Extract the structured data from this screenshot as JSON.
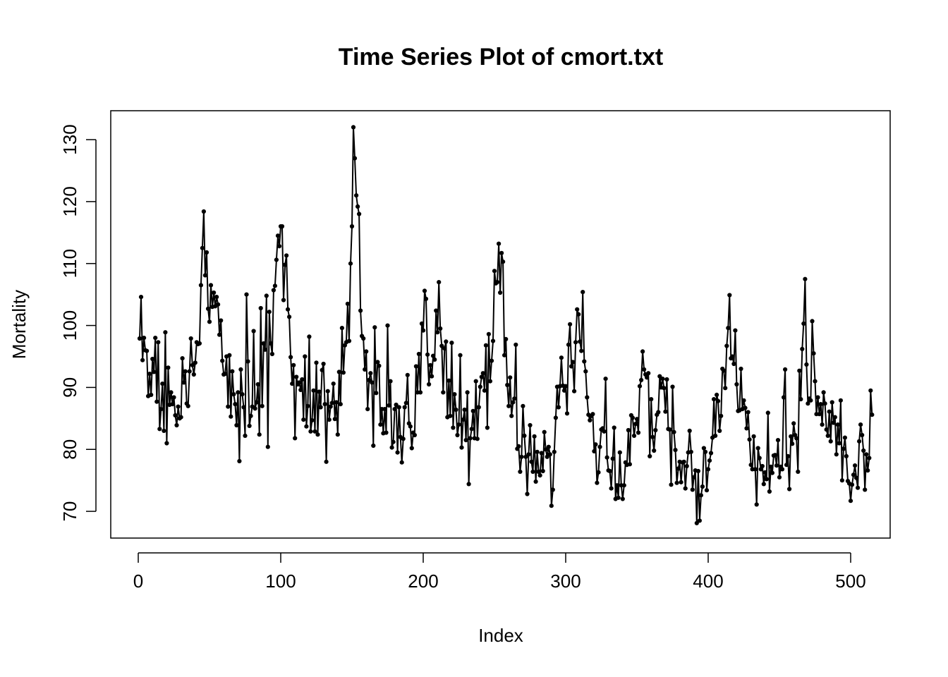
{
  "chart_data": {
    "type": "line",
    "title": "Time Series Plot of cmort.txt",
    "xlabel": "Index",
    "ylabel": "Mortality",
    "xlim": [
      1,
      508
    ],
    "ylim": [
      68,
      132
    ],
    "x_ticks": [
      0,
      100,
      200,
      300,
      400,
      500
    ],
    "y_ticks": [
      70,
      80,
      90,
      100,
      110,
      120,
      130
    ],
    "grid": false,
    "markers": "point",
    "line_color": "#000000",
    "series": [
      {
        "values": [
          97.9,
          104.6,
          94.4,
          98.0,
          96.0,
          95.9,
          88.6,
          92.2,
          88.8,
          94.6,
          92.5,
          98.0,
          87.7,
          97.3,
          83.3,
          86.5,
          90.6,
          83.0,
          98.9,
          81.0,
          93.2,
          87.2,
          89.2,
          87.3,
          88.4,
          85.5,
          83.9,
          86.9,
          85.0,
          85.2,
          94.7,
          90.8,
          92.6,
          87.4,
          87.0,
          92.6,
          97.9,
          93.6,
          92.1,
          94.0,
          97.3,
          97.0,
          97.1,
          106.5,
          112.5,
          118.4,
          108.1,
          111.8,
          102.7,
          100.6,
          106.5,
          103.0,
          105.3,
          103.1,
          104.6,
          103.4,
          98.5,
          100.8,
          94.3,
          92.1,
          92.2,
          95.0,
          86.9,
          95.2,
          85.3,
          92.6,
          88.9,
          87.3,
          83.9,
          89.2,
          78.1,
          92.9,
          88.9,
          86.8,
          82.2,
          105.0,
          94.2,
          83.8,
          85.4,
          86.9,
          99.1,
          86.6,
          87.6,
          90.5,
          82.4,
          102.8,
          87.0,
          97.1,
          96.1,
          104.8,
          80.4,
          102.2,
          97.1,
          95.4,
          105.7,
          106.4,
          110.6,
          114.5,
          112.8,
          116.0,
          116.0,
          104.1,
          109.8,
          111.3,
          102.6,
          101.4,
          94.9,
          90.6,
          93.6,
          81.8,
          91.7,
          90.5,
          90.8,
          89.6,
          91.3,
          84.8,
          95.0,
          83.7,
          87.0,
          98.2,
          82.9,
          84.7,
          89.5,
          82.9,
          94.0,
          82.4,
          89.3,
          86.8,
          92.8,
          93.8,
          87.3,
          78.0,
          89.4,
          84.8,
          86.9,
          87.5,
          90.6,
          84.9,
          87.6,
          82.4,
          92.5,
          87.3,
          99.6,
          92.4,
          96.8,
          97.3,
          103.5,
          97.5,
          110.0,
          116.0,
          132.0,
          127.0,
          121.0,
          119.2,
          118.0,
          102.4,
          98.3,
          97.9,
          92.9,
          95.8,
          86.5,
          91.2,
          92.3,
          90.8,
          80.6,
          99.7,
          89.1,
          94.1,
          93.5,
          84.0,
          86.5,
          82.6,
          86.5,
          82.7,
          100.0,
          87.1,
          91.0,
          80.3,
          81.2,
          86.5,
          87.2,
          79.5,
          86.8,
          82.0,
          77.9,
          81.7,
          86.8,
          87.5,
          92.0,
          84.2,
          83.7,
          80.2,
          82.7,
          82.3,
          93.4,
          89.2,
          95.4,
          89.2,
          100.3,
          99.2,
          105.6,
          104.3,
          95.3,
          90.5,
          93.6,
          91.8,
          95.1,
          94.5,
          102.4,
          98.9,
          107.0,
          99.5,
          96.7,
          89.2,
          96.3,
          97.4,
          85.2,
          91.1,
          85.4,
          97.2,
          83.5,
          88.9,
          86.4,
          82.3,
          84.0,
          95.2,
          80.3,
          84.8,
          86.4,
          81.5,
          89.2,
          74.4,
          81.8,
          83.3,
          86.2,
          81.8,
          91.0,
          81.7,
          86.8,
          90.1,
          91.7,
          92.3,
          89.5,
          96.8,
          83.5,
          98.6,
          91.0,
          94.3,
          97.5,
          108.8,
          106.8,
          107.0,
          113.2,
          105.3,
          111.7,
          110.3,
          95.2,
          97.8,
          90.4,
          87.0,
          91.6,
          85.4,
          87.6,
          88.2,
          96.9,
          80.1,
          80.5,
          76.4,
          78.8,
          87.0,
          82.2,
          78.8,
          72.8,
          79.2,
          83.9,
          78.0,
          76.4,
          82.1,
          74.8,
          79.6,
          76.4,
          75.8,
          79.4,
          76.5,
          82.8,
          80.0,
          78.8,
          80.4,
          79.2,
          70.9,
          73.5,
          79.6,
          85.1,
          90.1,
          86.8,
          90.2,
          94.8,
          90.3,
          89.5,
          90.2,
          85.8,
          96.9,
          100.2,
          93.4,
          94.1,
          89.4,
          97.3,
          102.6,
          101.8,
          97.4,
          95.9,
          105.4,
          94.2,
          92.6,
          88.4,
          85.6,
          84.7,
          85.4,
          85.7,
          79.7,
          80.8,
          74.6,
          76.3,
          80.4,
          83.2,
          83.4,
          82.9,
          91.4,
          78.7,
          76.6,
          76.5,
          73.7,
          78.5,
          83.5,
          72.0,
          74.2,
          72.2,
          79.5,
          74.2,
          72.0,
          74.2,
          77.9,
          77.5,
          83.1,
          77.6,
          85.5,
          85.1,
          82.2,
          84.1,
          84.9,
          82.7,
          90.2,
          91.2,
          95.8,
          92.9,
          92.1,
          91.6,
          92.3,
          78.9,
          88.1,
          82.0,
          79.8,
          83.1,
          85.6,
          86.0,
          91.8,
          90.0,
          91.4,
          89.9,
          86.1,
          91.3,
          83.3,
          83.2,
          74.3,
          90.1,
          82.8,
          79.9,
          74.6,
          76.9,
          78.0,
          74.7,
          77.9,
          78.0,
          73.7,
          77.3,
          79.5,
          83.0,
          79.6,
          73.5,
          75.5,
          76.6,
          68.1,
          76.5,
          68.5,
          72.6,
          74.0,
          80.2,
          79.6,
          73.4,
          76.8,
          78.2,
          79.4,
          81.9,
          88.1,
          82.2,
          88.8,
          87.8,
          83.0,
          85.4,
          93.0,
          92.7,
          89.9,
          96.7,
          99.6,
          104.9,
          94.7,
          95.0,
          93.8,
          99.2,
          90.5,
          86.2,
          86.3,
          93.0,
          86.5,
          87.9,
          86.7,
          83.4,
          86.0,
          81.6,
          77.5,
          76.8,
          82.1,
          76.8,
          71.1,
          80.2,
          78.6,
          76.8,
          77.3,
          74.4,
          76.3,
          75.2,
          85.9,
          73.2,
          77.2,
          76.2,
          79.0,
          79.1,
          77.4,
          81.5,
          75.5,
          77.2,
          76.8,
          88.4,
          92.9,
          77.5,
          78.9,
          73.6,
          82.1,
          80.9,
          84.2,
          82.3,
          81.8,
          76.4,
          92.7,
          88.1,
          96.2,
          100.3,
          107.5,
          93.7,
          87.4,
          88.2,
          87.9,
          100.7,
          95.5,
          91.0,
          85.7,
          88.4,
          85.7,
          87.3,
          84.0,
          89.2,
          87.4,
          83.2,
          82.2,
          86.1,
          81.3,
          87.6,
          84.3,
          85.2,
          79.2,
          84.0,
          81.0,
          87.9,
          75.0,
          80.1,
          81.9,
          78.9,
          74.9,
          74.5,
          71.7,
          74.3,
          75.9,
          77.4,
          75.4,
          73.8,
          81.3,
          84.0,
          82.3,
          79.8,
          73.5,
          79.2,
          76.6,
          78.6,
          89.5,
          85.6
        ]
      }
    ]
  }
}
